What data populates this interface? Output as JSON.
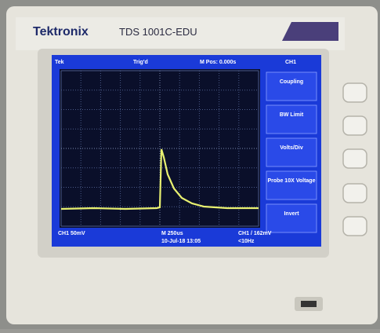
{
  "brand": "Tektronix",
  "model": "TDS 1001C-EDU",
  "screen": {
    "status_left": "Tek",
    "trigger_state": "Trig'd",
    "position": "M Pos: 0.000s",
    "channel": "CH1",
    "menu": [
      "Coupling",
      "BW Limit",
      "Volts/Div",
      "Probe 10X Voltage",
      "Invert"
    ],
    "bottom": {
      "channel_scale": "CH1 50mV",
      "time_scale": "M 250us",
      "date": "10-Jul-18 13:05",
      "trigger": "CH1 / 162mV",
      "frequency": "<10Hz"
    }
  }
}
